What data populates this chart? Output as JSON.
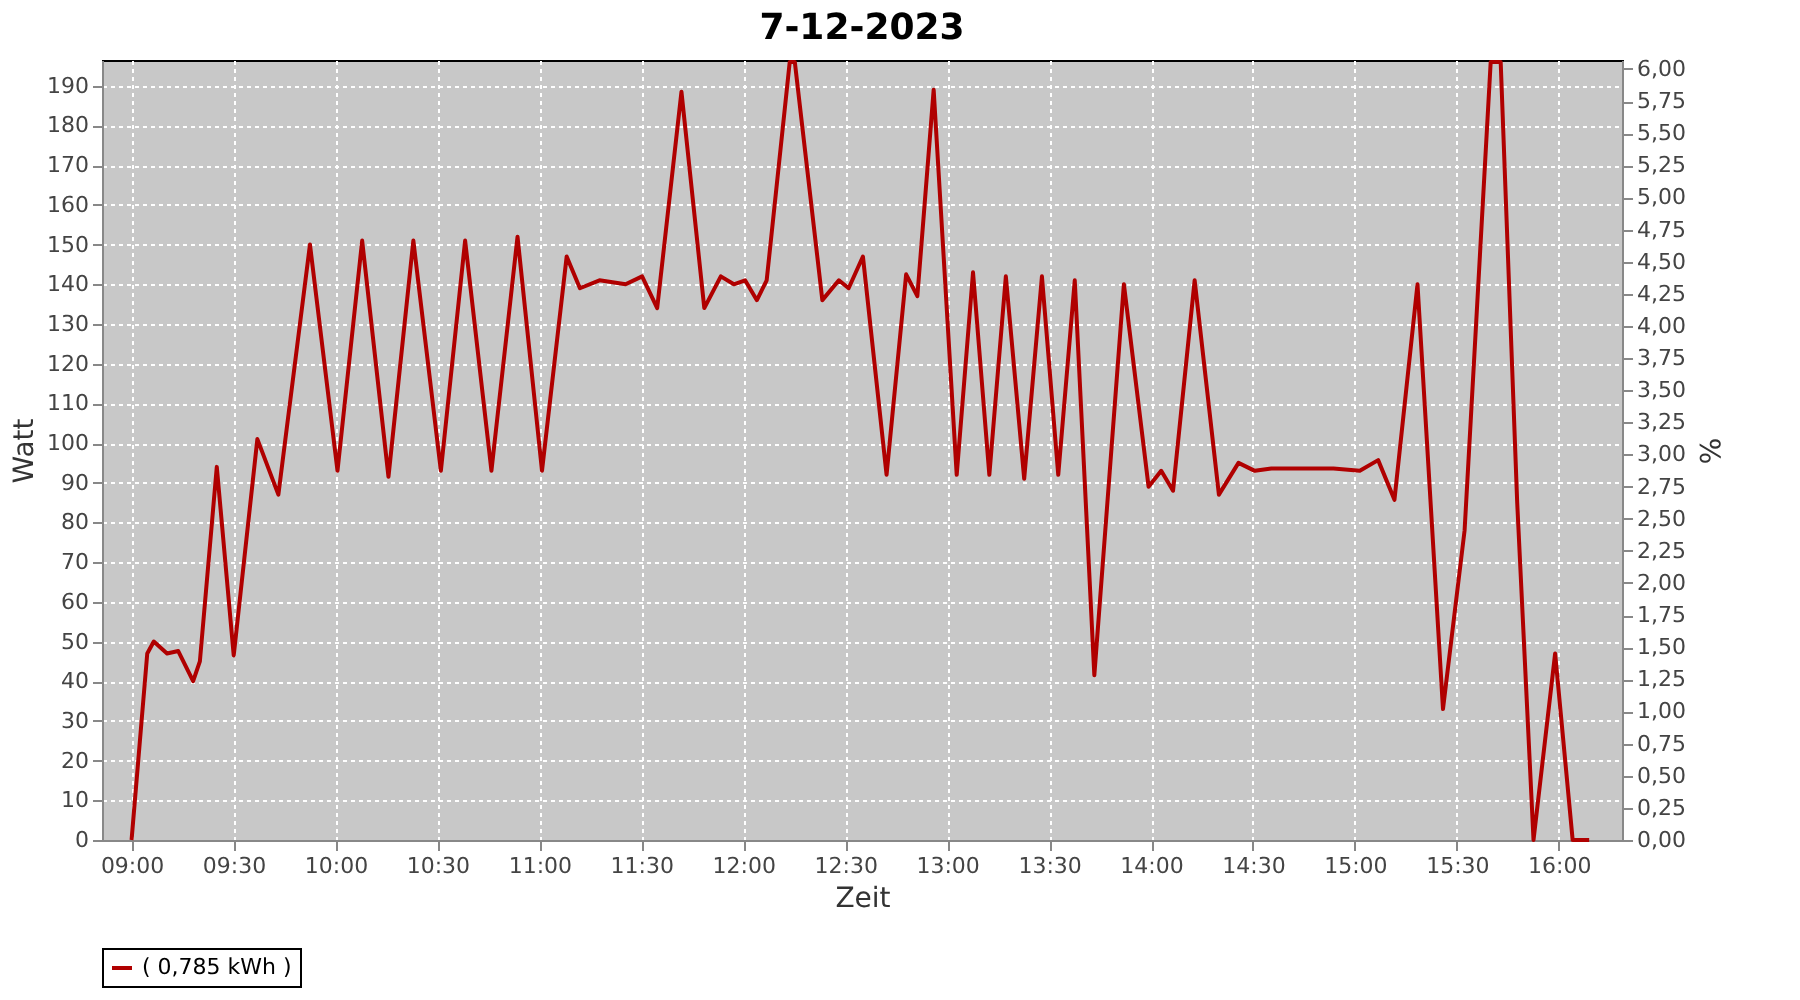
{
  "chart_data": {
    "type": "line",
    "title": "7-12-2023",
    "xlabel": "Zeit",
    "ylabel": "Watt",
    "y2label": "%",
    "x": [
      9.0,
      9.077,
      9.109,
      9.174,
      9.229,
      9.302,
      9.335,
      9.418,
      9.501,
      9.617,
      9.72,
      9.875,
      10.01,
      10.131,
      10.26,
      10.382,
      10.517,
      10.636,
      10.765,
      10.893,
      11.013,
      11.134,
      11.199,
      11.295,
      11.423,
      11.504,
      11.578,
      11.697,
      11.809,
      11.89,
      11.954,
      12.009,
      12.067,
      12.115,
      12.228,
      12.253,
      12.388,
      12.469,
      12.517,
      12.587,
      12.703,
      12.799,
      12.854,
      12.934,
      13.047,
      13.127,
      13.207,
      13.288,
      13.378,
      13.465,
      13.545,
      13.626,
      13.722,
      13.867,
      13.988,
      14.05,
      14.108,
      14.214,
      14.333,
      14.429,
      14.509,
      14.59,
      14.895,
      15.024,
      15.114,
      15.194,
      15.307,
      15.432,
      15.538,
      15.666,
      15.715,
      15.796,
      15.876,
      15.982,
      16.068,
      16.149
    ],
    "series": [
      {
        "name": "( 0,785 kWh )",
        "color": "#b00000",
        "values": [
          0,
          47,
          50,
          47,
          47.6,
          40,
          45,
          94,
          46.5,
          101,
          87,
          150,
          93,
          151,
          91.5,
          151,
          93,
          151,
          93,
          152,
          93,
          147,
          139,
          141,
          140,
          142,
          134,
          188.5,
          134,
          142,
          140,
          141,
          136,
          141,
          196,
          196,
          136,
          141,
          139,
          147,
          92,
          142.5,
          137,
          189,
          92,
          143,
          92,
          142,
          91,
          142,
          92,
          141,
          41.5,
          140,
          89,
          93,
          88,
          141,
          87,
          95,
          93,
          93.6,
          93.6,
          93,
          95.7,
          85.7,
          140,
          33,
          78,
          196,
          196,
          85,
          0,
          47,
          0,
          0
        ]
      }
    ],
    "xlim": [
      8.855,
      16.31
    ],
    "xticks": [
      {
        "value": 9,
        "label": "09:00"
      },
      {
        "value": 9.5,
        "label": "09:30"
      },
      {
        "value": 10,
        "label": "10:00"
      },
      {
        "value": 10.5,
        "label": "10:30"
      },
      {
        "value": 11,
        "label": "11:00"
      },
      {
        "value": 11.5,
        "label": "11:30"
      },
      {
        "value": 12,
        "label": "12:00"
      },
      {
        "value": 12.5,
        "label": "12:30"
      },
      {
        "value": 13,
        "label": "13:00"
      },
      {
        "value": 13.5,
        "label": "13:30"
      },
      {
        "value": 14,
        "label": "14:00"
      },
      {
        "value": 14.5,
        "label": "14:30"
      },
      {
        "value": 15,
        "label": "15:00"
      },
      {
        "value": 15.5,
        "label": "15:30"
      },
      {
        "value": 16,
        "label": "16:00"
      }
    ],
    "ylim": [
      0,
      196.5
    ],
    "yticks": [
      0,
      10,
      20,
      30,
      40,
      50,
      60,
      70,
      80,
      90,
      100,
      110,
      120,
      130,
      140,
      150,
      160,
      170,
      180,
      190
    ],
    "y2lim": [
      0,
      6.07
    ],
    "y2ticks": [
      {
        "value": 0,
        "label": "0,00"
      },
      {
        "value": 0.25,
        "label": "0,25"
      },
      {
        "value": 0.5,
        "label": "0,50"
      },
      {
        "value": 0.75,
        "label": "0,75"
      },
      {
        "value": 1,
        "label": "1,00"
      },
      {
        "value": 1.25,
        "label": "1,25"
      },
      {
        "value": 1.5,
        "label": "1,50"
      },
      {
        "value": 1.75,
        "label": "1,75"
      },
      {
        "value": 2,
        "label": "2,00"
      },
      {
        "value": 2.25,
        "label": "2,25"
      },
      {
        "value": 2.5,
        "label": "2,50"
      },
      {
        "value": 2.75,
        "label": "2,75"
      },
      {
        "value": 3,
        "label": "3,00"
      },
      {
        "value": 3.25,
        "label": "3,25"
      },
      {
        "value": 3.5,
        "label": "3,50"
      },
      {
        "value": 3.75,
        "label": "3,75"
      },
      {
        "value": 4,
        "label": "4,00"
      },
      {
        "value": 4.25,
        "label": "4,25"
      },
      {
        "value": 4.5,
        "label": "4,50"
      },
      {
        "value": 4.75,
        "label": "4,75"
      },
      {
        "value": 5,
        "label": "5,00"
      },
      {
        "value": 5.25,
        "label": "5,25"
      },
      {
        "value": 5.5,
        "label": "5,50"
      },
      {
        "value": 5.75,
        "label": "5,75"
      },
      {
        "value": 6,
        "label": "6,00"
      }
    ],
    "grid": true,
    "legend": "bottom",
    "marker": "none",
    "line_style": "solid"
  }
}
